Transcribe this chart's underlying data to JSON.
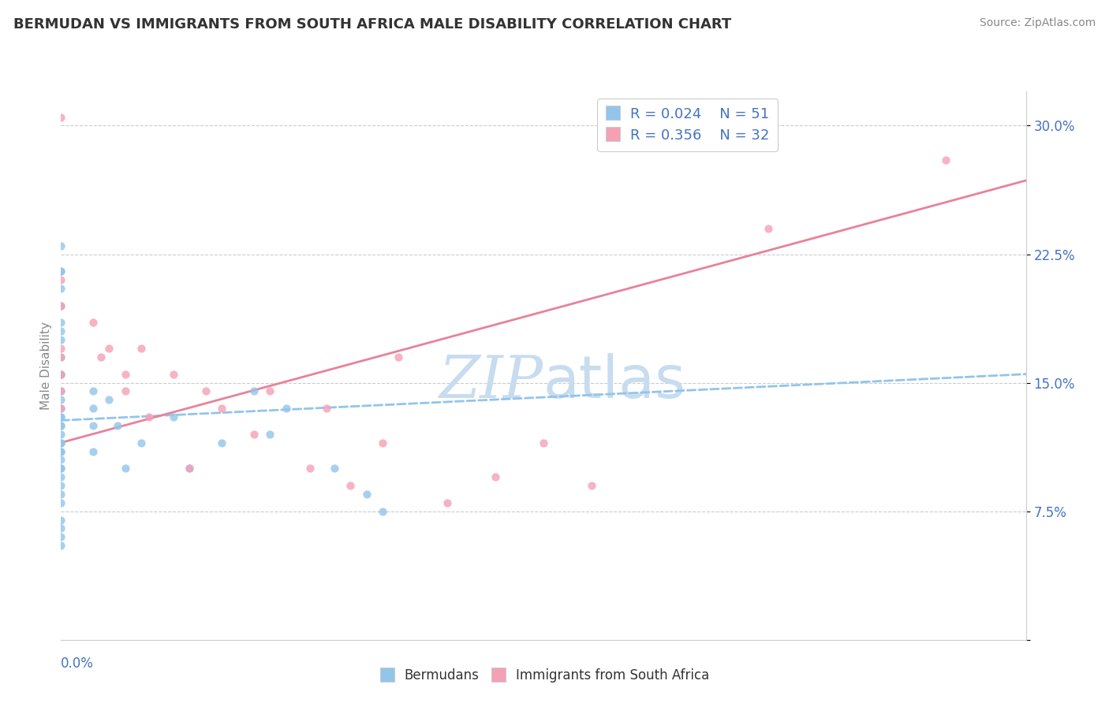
{
  "title": "BERMUDAN VS IMMIGRANTS FROM SOUTH AFRICA MALE DISABILITY CORRELATION CHART",
  "source": "Source: ZipAtlas.com",
  "ylabel": "Male Disability",
  "xmin": 0.0,
  "xmax": 0.6,
  "ymin": 0.0,
  "ymax": 0.32,
  "yticks": [
    0.0,
    0.075,
    0.15,
    0.225,
    0.3
  ],
  "ytick_labels": [
    "",
    "7.5%",
    "15.0%",
    "22.5%",
    "30.0%"
  ],
  "color_blue": "#92C5EA",
  "color_pink": "#F4A0B5",
  "line_blue_color": "#92C5EA",
  "line_pink_color": "#E8829A",
  "watermark_color": "#C8DCF0",
  "blue_r": 0.024,
  "blue_n": 51,
  "pink_r": 0.356,
  "pink_n": 32,
  "bermudans_x": [
    0.0,
    0.0,
    0.0,
    0.0,
    0.0,
    0.0,
    0.0,
    0.0,
    0.0,
    0.0,
    0.0,
    0.0,
    0.0,
    0.0,
    0.0,
    0.0,
    0.0,
    0.0,
    0.0,
    0.0,
    0.0,
    0.0,
    0.0,
    0.0,
    0.0,
    0.0,
    0.0,
    0.0,
    0.0,
    0.0,
    0.02,
    0.02,
    0.02,
    0.02,
    0.03,
    0.035,
    0.04,
    0.05,
    0.07,
    0.08,
    0.1,
    0.12,
    0.13,
    0.14,
    0.17,
    0.19,
    0.2,
    0.0,
    0.0,
    0.0,
    0.0
  ],
  "bermudans_y": [
    0.23,
    0.215,
    0.215,
    0.205,
    0.195,
    0.185,
    0.18,
    0.175,
    0.165,
    0.155,
    0.155,
    0.145,
    0.14,
    0.135,
    0.13,
    0.13,
    0.125,
    0.125,
    0.12,
    0.115,
    0.115,
    0.11,
    0.11,
    0.105,
    0.1,
    0.1,
    0.095,
    0.09,
    0.085,
    0.08,
    0.145,
    0.135,
    0.125,
    0.11,
    0.14,
    0.125,
    0.1,
    0.115,
    0.13,
    0.1,
    0.115,
    0.145,
    0.12,
    0.135,
    0.1,
    0.085,
    0.075,
    0.07,
    0.065,
    0.06,
    0.055
  ],
  "immigrants_x": [
    0.0,
    0.0,
    0.0,
    0.0,
    0.0,
    0.0,
    0.0,
    0.0,
    0.02,
    0.025,
    0.03,
    0.04,
    0.04,
    0.05,
    0.055,
    0.07,
    0.08,
    0.09,
    0.1,
    0.12,
    0.13,
    0.155,
    0.165,
    0.18,
    0.2,
    0.21,
    0.24,
    0.27,
    0.3,
    0.33,
    0.44,
    0.55
  ],
  "immigrants_y": [
    0.305,
    0.21,
    0.195,
    0.17,
    0.165,
    0.155,
    0.145,
    0.135,
    0.185,
    0.165,
    0.17,
    0.155,
    0.145,
    0.17,
    0.13,
    0.155,
    0.1,
    0.145,
    0.135,
    0.12,
    0.145,
    0.1,
    0.135,
    0.09,
    0.115,
    0.165,
    0.08,
    0.095,
    0.115,
    0.09,
    0.24,
    0.28
  ],
  "blue_line_x0": 0.0,
  "blue_line_x1": 0.6,
  "blue_line_y0": 0.128,
  "blue_line_y1": 0.155,
  "pink_line_x0": 0.0,
  "pink_line_x1": 0.6,
  "pink_line_y0": 0.115,
  "pink_line_y1": 0.268
}
